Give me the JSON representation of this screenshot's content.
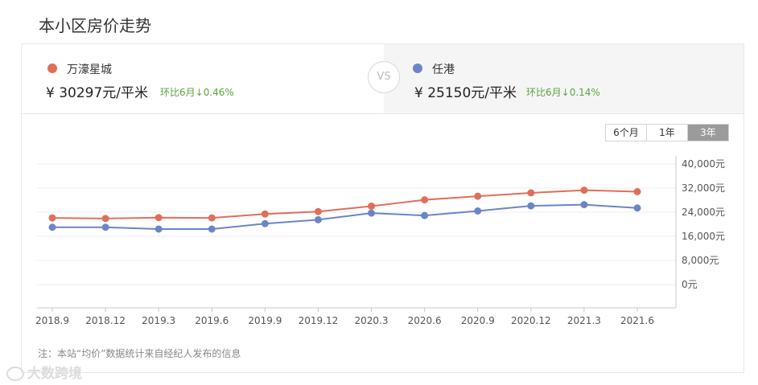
{
  "page": {
    "title": "本小区房价走势"
  },
  "compare": {
    "left": {
      "name": "万濠星城",
      "price": "¥ 30297元/平米",
      "change": "环比6月↓0.46%",
      "color": "#e06f5a"
    },
    "vs_label": "VS",
    "right": {
      "name": "任港",
      "price": "¥ 25150元/平米",
      "change": "环比6月↓0.14%",
      "color": "#6b86c7"
    }
  },
  "tabs": [
    {
      "label": "6个月",
      "active": false
    },
    {
      "label": "1年",
      "active": false
    },
    {
      "label": "3年",
      "active": true
    }
  ],
  "chart_data": {
    "type": "line",
    "categories": [
      "2018.9",
      "2018.12",
      "2019.3",
      "2019.6",
      "2019.9",
      "2019.12",
      "2020.3",
      "2020.6",
      "2020.9",
      "2020.12",
      "2021.3",
      "2021.6"
    ],
    "series": [
      {
        "name": "万濠星城",
        "color": "#e06f5a",
        "values": [
          22100,
          21900,
          22200,
          22100,
          23400,
          24200,
          26000,
          28100,
          29300,
          30400,
          31300,
          30800
        ]
      },
      {
        "name": "任港",
        "color": "#6b86c7",
        "values": [
          19000,
          19000,
          18400,
          18400,
          20200,
          21500,
          23700,
          22900,
          24400,
          26100,
          26500,
          25400
        ]
      }
    ],
    "y_ticks": [
      "40,000元",
      "32,000元",
      "24,000元",
      "16,000元",
      "8,000元",
      "0元"
    ],
    "y_tick_values": [
      40000,
      32000,
      24000,
      16000,
      8000,
      0
    ],
    "ylim": [
      0,
      40000
    ],
    "grid": true
  },
  "note": "注：本站“均价”数据统计来自经纪人发布的信息",
  "watermark": "大数跨境"
}
